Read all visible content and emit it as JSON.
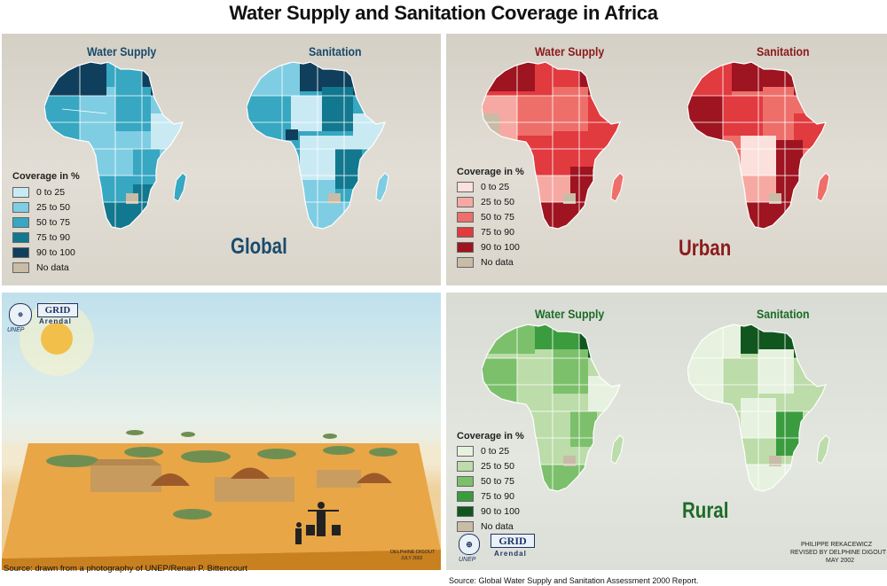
{
  "title": "Water Supply and Sanitation Coverage in Africa",
  "panels": {
    "global": {
      "label": "Global",
      "label_color": "#1b4a6b",
      "header_color": "#1b4a6b",
      "water_title": "Water Supply",
      "sanitation_title": "Sanitation",
      "legend_title": "Coverage in %",
      "legend": [
        {
          "label": "0 to 25",
          "color": "#c9eaf3"
        },
        {
          "label": "25 to 50",
          "color": "#7fcde3"
        },
        {
          "label": "50 to 75",
          "color": "#37a7c2"
        },
        {
          "label": "75 to 90",
          "color": "#12788f"
        },
        {
          "label": "90 to 100",
          "color": "#0f3f5c"
        },
        {
          "label": "No data",
          "color": "#c8bca6"
        }
      ]
    },
    "urban": {
      "label": "Urban",
      "label_color": "#8c1a1c",
      "header_color": "#8c1a1c",
      "water_title": "Water Supply",
      "sanitation_title": "Sanitation",
      "legend_title": "Coverage in %",
      "legend": [
        {
          "label": "0 to 25",
          "color": "#fbe0dc"
        },
        {
          "label": "25 to 50",
          "color": "#f6a9a2"
        },
        {
          "label": "50 to 75",
          "color": "#ee6f6a"
        },
        {
          "label": "75 to 90",
          "color": "#e13a3f"
        },
        {
          "label": "90 to 100",
          "color": "#9e1420"
        },
        {
          "label": "No data",
          "color": "#c8bca6"
        }
      ]
    },
    "rural": {
      "label": "Rural",
      "label_color": "#1d6b27",
      "header_color": "#1d6b27",
      "water_title": "Water Supply",
      "sanitation_title": "Sanitation",
      "legend_title": "Coverage in %",
      "legend": [
        {
          "label": "0 to 25",
          "color": "#e6f2df"
        },
        {
          "label": "25 to 50",
          "color": "#bcdca9"
        },
        {
          "label": "50 to 75",
          "color": "#7cc06b"
        },
        {
          "label": "75 to 90",
          "color": "#3a9c3e"
        },
        {
          "label": "90 to 100",
          "color": "#12561f"
        },
        {
          "label": "No data",
          "color": "#c8bca6"
        }
      ]
    }
  },
  "illustration": {
    "source": "Source: drawn from a photography of UNEP/Renan P. Bittencourt",
    "artist": "DELPHINE DIGOUT",
    "artist_date": "JULY 2002",
    "unep_logo": "UNEP",
    "grid_logo": "GRID",
    "grid_logo_sub": "Arendal"
  },
  "footer": {
    "unep_logo": "UNEP",
    "grid_logo": "GRID",
    "grid_logo_sub": "Arendal",
    "credit_line1": "PHILIPPE REKACEWICZ",
    "credit_line2": "REVISED BY DELPHINE DIGOUT",
    "credit_line3": "MAY 2002",
    "source": "Source: Global Water Supply and Sanitation Assessment 2000 Report."
  }
}
